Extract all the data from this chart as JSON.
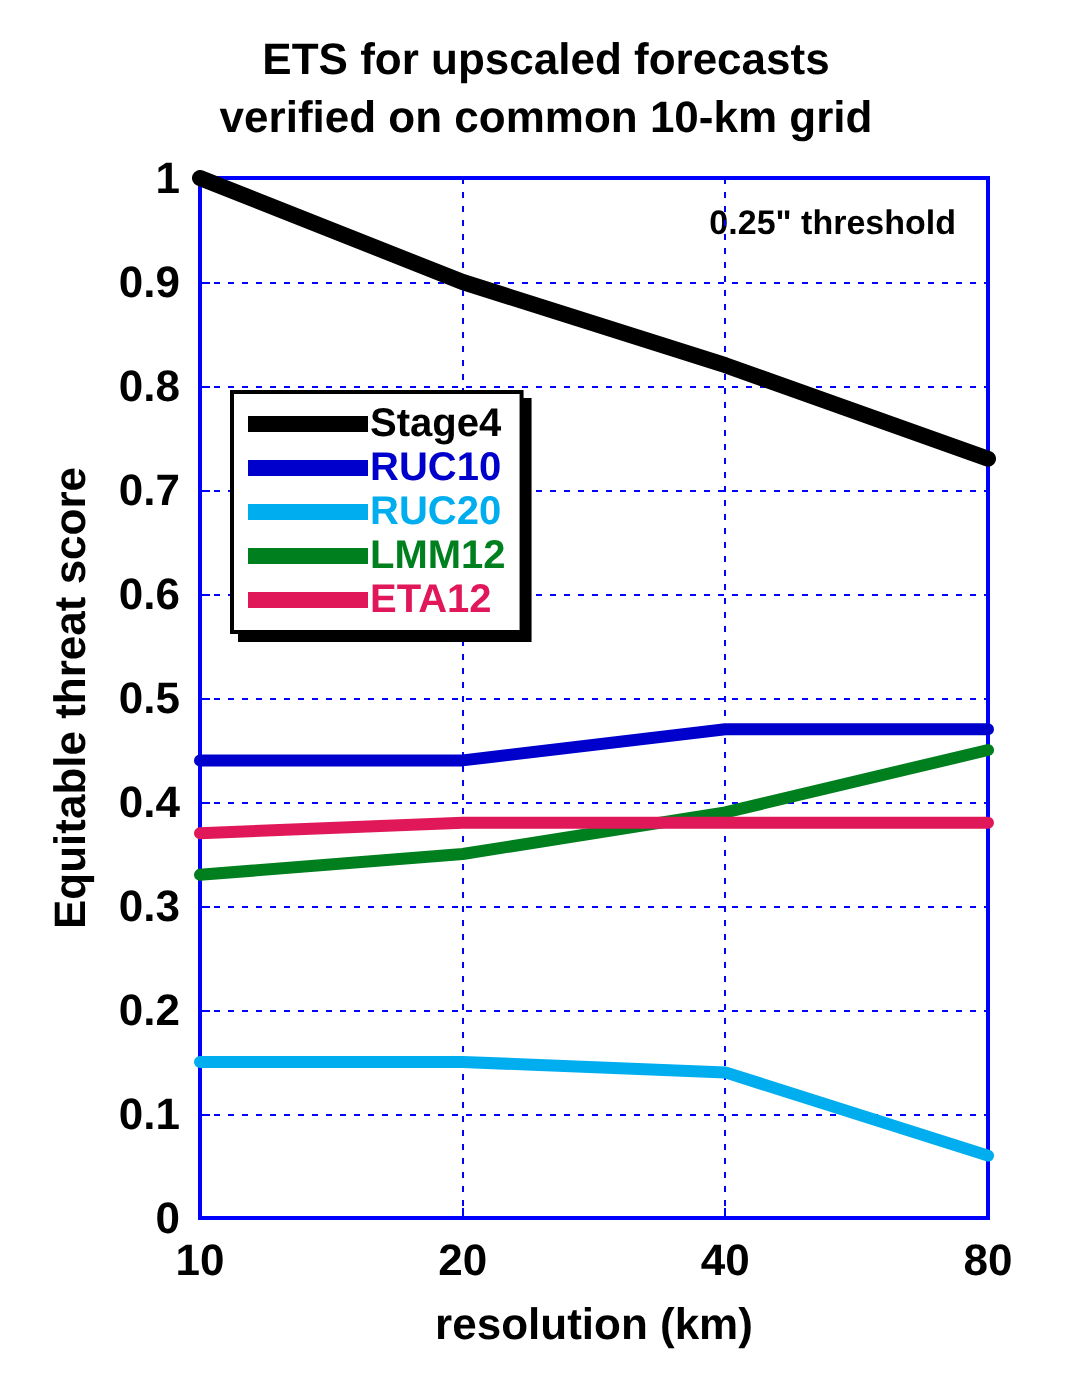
{
  "chart_data": {
    "type": "line",
    "title": "ETS for upscaled forecasts\nverified on common 10-km grid",
    "xlabel": "resolution (km)",
    "ylabel": "Equitable threat score",
    "annotations": [
      "0.25\" threshold"
    ],
    "x": [
      10,
      20,
      40,
      80
    ],
    "log": "x",
    "xlim": [
      10,
      80
    ],
    "xticks": [
      10,
      20,
      40,
      80
    ],
    "ylim": [
      0,
      1
    ],
    "yticks": [
      0,
      0.1,
      0.2,
      0.3,
      0.4,
      0.5,
      0.6,
      0.7,
      0.8,
      0.9,
      1
    ],
    "grid": true,
    "legend": "top left",
    "marker": "none",
    "line_style": "solid",
    "series": [
      {
        "name": "Stage4",
        "color": "#000000",
        "values": [
          1.0,
          0.9,
          0.82,
          0.73
        ]
      },
      {
        "name": "RUC10",
        "color": "#0000cc",
        "values": [
          0.44,
          0.44,
          0.47,
          0.47
        ]
      },
      {
        "name": "RUC20",
        "color": "#00aeef",
        "values": [
          0.15,
          0.15,
          0.14,
          0.06
        ]
      },
      {
        "name": "LMM12",
        "color": "#007f1f",
        "values": [
          0.33,
          0.35,
          0.39,
          0.45
        ]
      },
      {
        "name": "ETA12",
        "color": "#e0185a",
        "values": [
          0.37,
          0.38,
          0.38,
          0.38
        ]
      }
    ]
  }
}
